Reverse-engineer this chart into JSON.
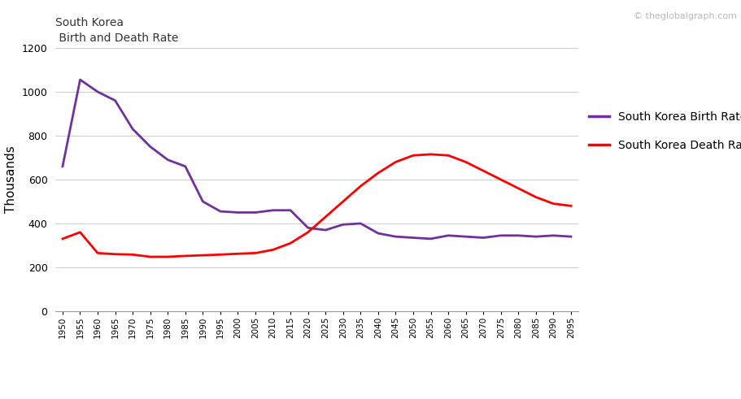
{
  "birth_rate": {
    "years": [
      1950,
      1955,
      1960,
      1965,
      1970,
      1975,
      1980,
      1985,
      1990,
      1995,
      2000,
      2005,
      2010,
      2015,
      2020,
      2025,
      2030,
      2035,
      2040,
      2045,
      2050,
      2055,
      2060,
      2065,
      2070,
      2075,
      2080,
      2085,
      2090,
      2095
    ],
    "values": [
      660,
      1055,
      1000,
      960,
      830,
      750,
      690,
      660,
      500,
      455,
      450,
      450,
      460,
      460,
      380,
      370,
      395,
      400,
      355,
      340,
      335,
      330,
      345,
      340,
      335,
      345,
      345,
      340,
      345,
      340
    ]
  },
  "death_rate": {
    "years": [
      1950,
      1955,
      1960,
      1965,
      1970,
      1975,
      1980,
      1985,
      1990,
      1995,
      2000,
      2005,
      2010,
      2015,
      2020,
      2025,
      2030,
      2035,
      2040,
      2045,
      2050,
      2055,
      2060,
      2065,
      2070,
      2075,
      2080,
      2085,
      2090,
      2095
    ],
    "values": [
      330,
      360,
      265,
      260,
      258,
      248,
      248,
      252,
      255,
      258,
      262,
      265,
      280,
      310,
      360,
      430,
      500,
      570,
      630,
      680,
      710,
      715,
      710,
      680,
      640,
      600,
      560,
      520,
      490,
      480
    ]
  },
  "birth_color": "#7030A0",
  "death_color": "#FF0000",
  "ylabel": "Thousands",
  "ylim": [
    0,
    1200
  ],
  "yticks": [
    0,
    200,
    400,
    600,
    800,
    1000,
    1200
  ],
  "legend_labels": [
    "South Korea Birth Rate",
    "South Korea Death Rate"
  ],
  "watermark": "© theglobalgraph.com",
  "title_line1": "South Korea",
  "title_line2": " Birth and Death Rate",
  "background_color": "#FFFFFF",
  "grid_color": "#CCCCCC",
  "line_width": 2.0
}
